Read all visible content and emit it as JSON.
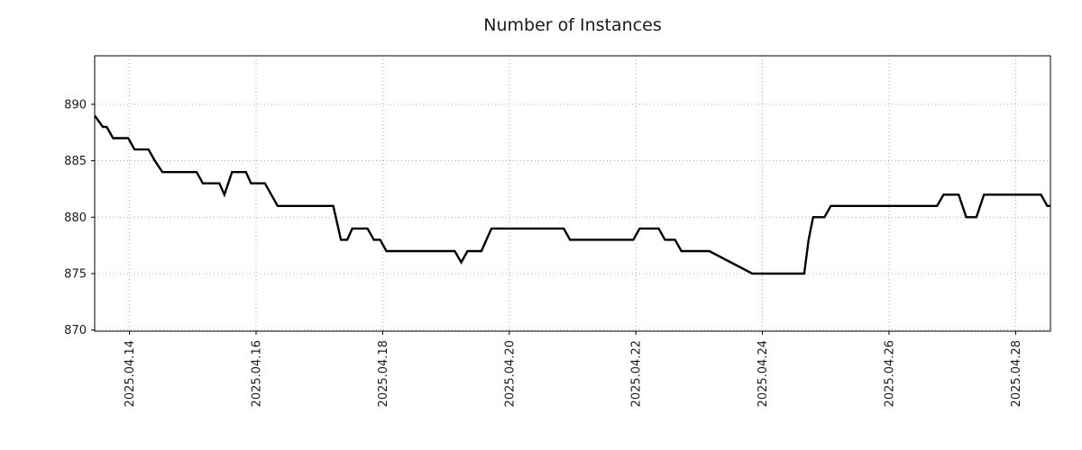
{
  "chart_data": {
    "type": "line",
    "title": "Number of Instances",
    "xlabel": "",
    "ylabel": "",
    "grid": "dotted",
    "legend_position": "none",
    "xlim": [
      13.45,
      28.55
    ],
    "ylim": [
      869.9,
      894.3
    ],
    "x_ticks": [
      {
        "value": 14,
        "label": "2025.04.14"
      },
      {
        "value": 16,
        "label": "2025.04.16"
      },
      {
        "value": 18,
        "label": "2025.04.18"
      },
      {
        "value": 20,
        "label": "2025.04.20"
      },
      {
        "value": 22,
        "label": "2025.04.22"
      },
      {
        "value": 24,
        "label": "2025.04.24"
      },
      {
        "value": 26,
        "label": "2025.04.26"
      },
      {
        "value": 28,
        "label": "2025.04.28"
      }
    ],
    "y_ticks": [
      870,
      875,
      880,
      885,
      890
    ],
    "series": [
      {
        "name": "Number of Instances",
        "color": "#000000",
        "points": [
          [
            13.45,
            889
          ],
          [
            13.58,
            888
          ],
          [
            13.64,
            888
          ],
          [
            13.74,
            887
          ],
          [
            13.98,
            887
          ],
          [
            14.08,
            886
          ],
          [
            14.3,
            886
          ],
          [
            14.4,
            885
          ],
          [
            14.52,
            884
          ],
          [
            15.06,
            884
          ],
          [
            15.16,
            883
          ],
          [
            15.42,
            883
          ],
          [
            15.5,
            882
          ],
          [
            15.56,
            883
          ],
          [
            15.62,
            884
          ],
          [
            15.84,
            884
          ],
          [
            15.92,
            883
          ],
          [
            16.14,
            883
          ],
          [
            16.24,
            882
          ],
          [
            16.34,
            881
          ],
          [
            17.22,
            881
          ],
          [
            17.34,
            878
          ],
          [
            17.44,
            878
          ],
          [
            17.52,
            879
          ],
          [
            17.76,
            879
          ],
          [
            17.86,
            878
          ],
          [
            17.96,
            878
          ],
          [
            18.06,
            877
          ],
          [
            19.14,
            877
          ],
          [
            19.24,
            876
          ],
          [
            19.34,
            877
          ],
          [
            19.56,
            877
          ],
          [
            19.64,
            878
          ],
          [
            19.72,
            879
          ],
          [
            20.86,
            879
          ],
          [
            20.96,
            878
          ],
          [
            21.96,
            878
          ],
          [
            22.06,
            879
          ],
          [
            22.36,
            879
          ],
          [
            22.46,
            878
          ],
          [
            22.62,
            878
          ],
          [
            22.72,
            877
          ],
          [
            23.16,
            877
          ],
          [
            23.5,
            876
          ],
          [
            23.84,
            875
          ],
          [
            24.66,
            875
          ],
          [
            24.73,
            878
          ],
          [
            24.8,
            880
          ],
          [
            24.98,
            880
          ],
          [
            25.08,
            881
          ],
          [
            26.76,
            881
          ],
          [
            26.86,
            882
          ],
          [
            27.1,
            882
          ],
          [
            27.22,
            880
          ],
          [
            27.38,
            880
          ],
          [
            27.5,
            882
          ],
          [
            28.4,
            882
          ],
          [
            28.5,
            881
          ],
          [
            28.55,
            881
          ]
        ]
      }
    ]
  }
}
